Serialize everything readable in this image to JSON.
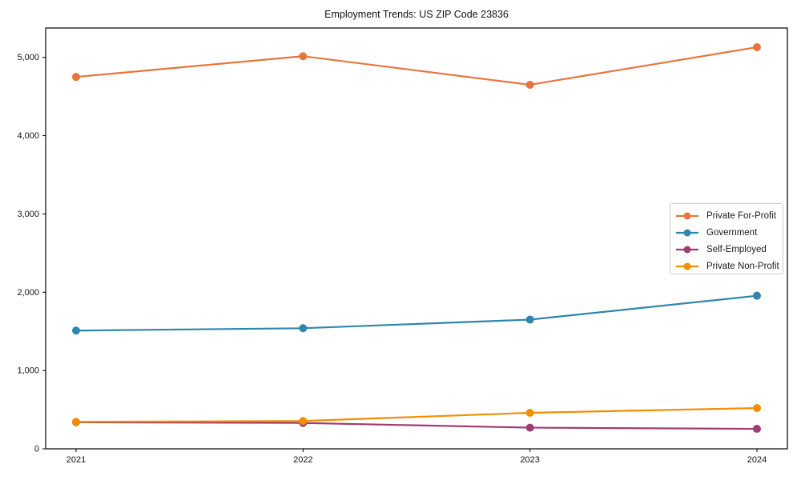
{
  "chart_data": {
    "type": "line",
    "title": "Employment Trends: US ZIP Code 23836",
    "categories": [
      "2021",
      "2022",
      "2023",
      "2024"
    ],
    "series": [
      {
        "name": "Private For-Profit",
        "color": "#E8743B",
        "values": [
          4750,
          5015,
          4650,
          5130
        ]
      },
      {
        "name": "Government",
        "color": "#2E86AB",
        "values": [
          1510,
          1540,
          1650,
          1955
        ]
      },
      {
        "name": "Self-Employed",
        "color": "#A23B72",
        "values": [
          340,
          330,
          270,
          255
        ]
      },
      {
        "name": "Private Non-Profit",
        "color": "#F18F01",
        "values": [
          345,
          355,
          460,
          520
        ]
      }
    ],
    "xlabel": "",
    "ylabel": "",
    "ylim": [
      0,
      5375
    ],
    "yticks": {
      "values": [
        0,
        1000,
        2000,
        3000,
        4000,
        5000
      ],
      "labels": [
        "0",
        "1,000",
        "2,000",
        "3,000",
        "4,000",
        "5,000"
      ]
    },
    "grid": false,
    "legend_position": "center-right",
    "marker": "circle"
  },
  "colors": {
    "axis": "#000000",
    "text": "#111111",
    "legend_border": "#cccccc",
    "background": "#ffffff"
  }
}
